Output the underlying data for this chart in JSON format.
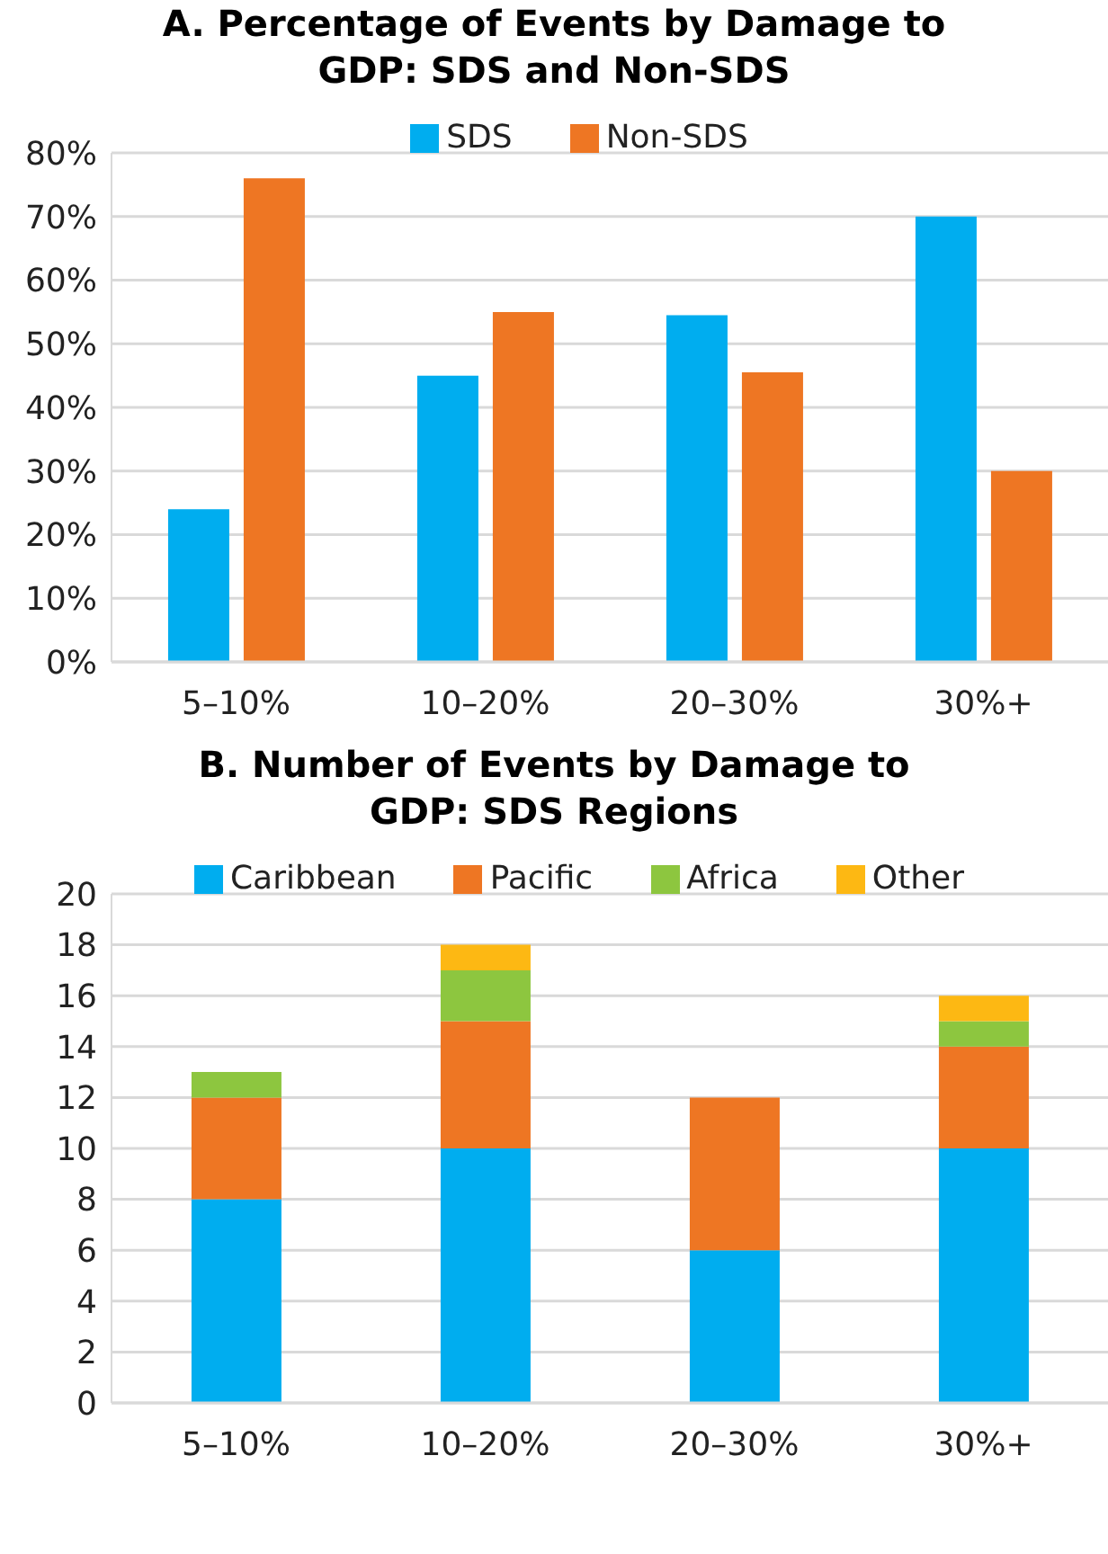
{
  "chart_data": [
    {
      "type": "bar",
      "title": "A. Percentage of Events by Damage to GDP: SDS and Non-SDS",
      "categories": [
        "5–10%",
        "10–20%",
        "20–30%",
        "30%+"
      ],
      "series": [
        {
          "name": "SDS",
          "color": "#00adef",
          "values": [
            24,
            45,
            54.5,
            70
          ]
        },
        {
          "name": "Non-SDS",
          "color": "#ee7623",
          "values": [
            76,
            55,
            45.5,
            30
          ]
        }
      ],
      "ylim": [
        0,
        80
      ],
      "yticks": [
        {
          "value": 0,
          "label": "0%"
        },
        {
          "value": 10,
          "label": "10%"
        },
        {
          "value": 20,
          "label": "20%"
        },
        {
          "value": 30,
          "label": "30%"
        },
        {
          "value": 40,
          "label": "40%"
        },
        {
          "value": 50,
          "label": "50%"
        },
        {
          "value": 60,
          "label": "60%"
        },
        {
          "value": 70,
          "label": "70%"
        },
        {
          "value": 80,
          "label": "80%"
        }
      ],
      "grid": "y",
      "legend": "top"
    },
    {
      "type": "bar",
      "title": "B. Number of Events by Damage to GDP: SDS Regions",
      "categories": [
        "5–10%",
        "10–20%",
        "20–30%",
        "30%+"
      ],
      "stacked": true,
      "series": [
        {
          "name": "Caribbean",
          "color": "#00adef",
          "values": [
            8,
            10,
            6,
            10
          ]
        },
        {
          "name": "Pacific",
          "color": "#ee7623",
          "values": [
            4,
            5,
            6,
            4
          ]
        },
        {
          "name": "Africa",
          "color": "#8dc63f",
          "values": [
            1,
            2,
            0,
            1
          ]
        },
        {
          "name": "Other",
          "color": "#fdb813",
          "values": [
            0,
            1,
            0,
            1
          ]
        }
      ],
      "ylim": [
        0,
        20
      ],
      "yticks": [
        0,
        2,
        4,
        6,
        8,
        10,
        12,
        14,
        16,
        18,
        20
      ],
      "grid": "y",
      "legend": "top"
    }
  ]
}
